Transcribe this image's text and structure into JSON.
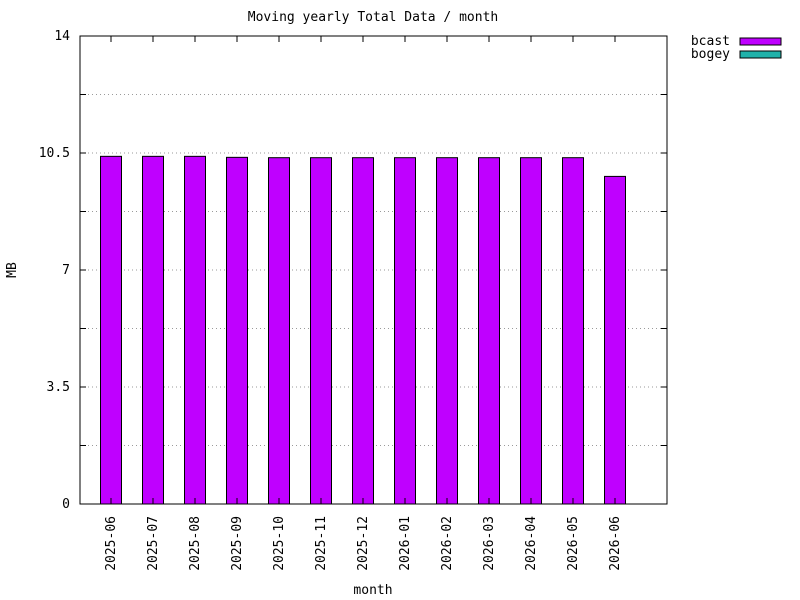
{
  "chart_data": {
    "type": "bar",
    "title": "Moving yearly Total Data / month",
    "xlabel": "month",
    "ylabel": "MB",
    "ylim": [
      0,
      14
    ],
    "yticks_labeled": [
      "0",
      "3.5",
      "7",
      "10.5",
      "14"
    ],
    "yticks_values": [
      0,
      3.5,
      7,
      10.5,
      14
    ],
    "ygrid_values": [
      1.75,
      3.5,
      5.25,
      7,
      8.75,
      10.5,
      12.25
    ],
    "grid": true,
    "legend_position": "top-right",
    "categories": [
      "2025-06",
      "2025-07",
      "2025-08",
      "2025-09",
      "2025-10",
      "2025-11",
      "2025-12",
      "2026-01",
      "2026-02",
      "2026-03",
      "2026-04",
      "2026-05",
      "2026-06"
    ],
    "series": [
      {
        "name": "bcast",
        "color": "#bf00ff",
        "values": [
          10.4,
          10.4,
          10.4,
          10.37,
          10.36,
          10.36,
          10.36,
          10.36,
          10.36,
          10.36,
          10.36,
          10.36,
          9.8
        ]
      },
      {
        "name": "bogey",
        "color": "#20b2aa",
        "values": [
          0,
          0,
          0,
          0,
          0,
          0,
          0,
          0,
          0,
          0,
          0,
          0,
          0
        ]
      }
    ]
  }
}
